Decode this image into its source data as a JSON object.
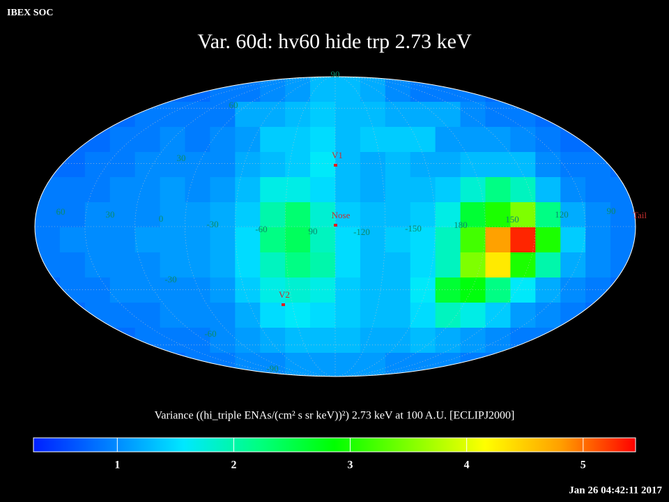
{
  "chart_data": {
    "type": "heatmap",
    "header": "IBEX SOC",
    "title": "Var. 60d: hv60 hide trp 2.73 keV",
    "grid_labels": [
      "90",
      "60",
      "30",
      "60",
      "30",
      "0",
      "-30",
      "-60",
      "90",
      "-120",
      "-150",
      "180",
      "150",
      "120",
      "90",
      "-30",
      "-60",
      "-90"
    ],
    "markers": [
      "V1",
      "Nose",
      "V2",
      "Tail"
    ],
    "values": [
      [
        0.8,
        0.8,
        0.8,
        0.8,
        0.8,
        0.8,
        0.8,
        0.9,
        0.9,
        1.0,
        1.1,
        1.3,
        1.3,
        1.2,
        1.0,
        0.9,
        0.9,
        0.9,
        0.8,
        0.8,
        0.8,
        0.8,
        0.8,
        0.8
      ],
      [
        0.8,
        0.8,
        0.8,
        0.8,
        0.9,
        0.9,
        0.9,
        0.9,
        1.2,
        1.2,
        1.3,
        1.4,
        1.3,
        1.3,
        1.2,
        1.2,
        1.2,
        1.0,
        0.9,
        0.9,
        0.8,
        0.8,
        0.8,
        0.8
      ],
      [
        0.8,
        0.8,
        0.8,
        0.9,
        0.9,
        1.0,
        0.9,
        1.0,
        1.1,
        1.4,
        1.4,
        1.5,
        1.3,
        1.4,
        1.4,
        1.4,
        1.1,
        1.1,
        1.1,
        1.0,
        0.9,
        0.8,
        0.8,
        0.8
      ],
      [
        0.8,
        0.8,
        0.9,
        0.9,
        1.0,
        1.0,
        1.0,
        1.0,
        1.2,
        1.3,
        1.4,
        1.6,
        1.3,
        1.2,
        1.3,
        1.2,
        1.2,
        1.3,
        1.3,
        1.3,
        1.0,
        0.9,
        0.9,
        0.8
      ],
      [
        0.9,
        0.9,
        0.9,
        1.0,
        1.0,
        1.1,
        1.0,
        1.1,
        1.3,
        1.7,
        1.7,
        1.5,
        1.3,
        1.2,
        1.3,
        1.3,
        1.4,
        1.8,
        2.2,
        1.9,
        1.3,
        1.0,
        0.9,
        0.9
      ],
      [
        0.9,
        0.9,
        1.0,
        1.0,
        1.0,
        1.1,
        1.1,
        1.2,
        1.4,
        2.0,
        2.3,
        1.8,
        1.4,
        1.3,
        1.3,
        1.4,
        1.7,
        2.6,
        3.0,
        3.5,
        2.2,
        1.2,
        1.0,
        0.9
      ],
      [
        0.9,
        1.0,
        1.0,
        1.0,
        1.1,
        1.1,
        1.1,
        1.2,
        1.5,
        2.2,
        2.4,
        1.9,
        1.5,
        1.3,
        1.4,
        1.5,
        1.9,
        3.2,
        4.8,
        5.3,
        3.0,
        1.4,
        1.0,
        0.9
      ],
      [
        0.9,
        0.9,
        1.0,
        1.0,
        1.0,
        1.1,
        1.1,
        1.2,
        1.5,
        1.9,
        2.2,
        2.0,
        1.5,
        1.3,
        1.3,
        1.5,
        1.9,
        3.5,
        4.3,
        3.0,
        2.0,
        1.2,
        1.0,
        0.9
      ],
      [
        0.8,
        0.9,
        0.9,
        1.0,
        1.0,
        1.0,
        1.0,
        1.1,
        1.4,
        1.7,
        1.8,
        1.7,
        1.4,
        1.3,
        1.3,
        1.6,
        2.6,
        2.8,
        2.2,
        1.6,
        1.2,
        1.0,
        0.9,
        0.8
      ],
      [
        0.8,
        0.8,
        0.9,
        0.9,
        0.9,
        1.0,
        1.0,
        1.0,
        1.2,
        1.5,
        1.6,
        1.5,
        1.4,
        1.3,
        1.3,
        1.5,
        1.9,
        1.7,
        1.4,
        1.1,
        1.0,
        0.9,
        0.8,
        0.8
      ],
      [
        0.8,
        0.8,
        0.8,
        0.8,
        0.9,
        0.9,
        0.9,
        1.0,
        1.1,
        1.2,
        1.3,
        1.3,
        1.3,
        1.2,
        1.2,
        1.3,
        1.2,
        1.1,
        1.0,
        0.9,
        0.9,
        0.8,
        0.8,
        0.8
      ],
      [
        0.8,
        0.8,
        0.8,
        0.8,
        0.8,
        0.8,
        0.9,
        0.9,
        1.0,
        1.0,
        1.1,
        1.1,
        1.1,
        1.1,
        1.0,
        1.0,
        1.0,
        0.9,
        0.9,
        0.8,
        0.8,
        0.8,
        0.8,
        0.8
      ]
    ],
    "colormap": [
      "#0020ff",
      "#0080ff",
      "#00e8ff",
      "#00ff80",
      "#00ff00",
      "#80ff00",
      "#ffff00",
      "#ffa000",
      "#ff0000"
    ],
    "colorbar": {
      "label": "Variance ((hi_triple ENAs/(cm² s sr keV))²) 2.73 keV at 100 A.U. [ECLIPJ2000]",
      "clim": [
        0.28,
        5.45
      ],
      "ticks": [
        1,
        2,
        3,
        4,
        5
      ]
    },
    "timestamp": "Jan 26 04:42:11 2017"
  }
}
